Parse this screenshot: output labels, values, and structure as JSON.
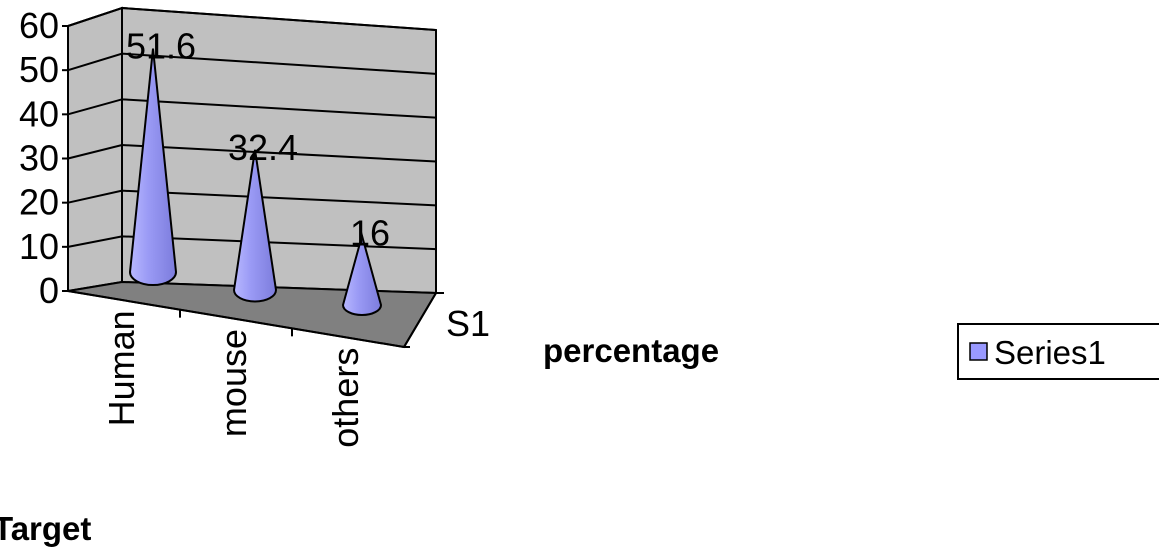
{
  "chart_data": {
    "type": "bar",
    "style": "3d-cone",
    "categories": [
      "Human",
      "mouse",
      "others"
    ],
    "series": [
      {
        "name": "Series1",
        "values": [
          51.6,
          32.4,
          16
        ],
        "color": "#9999ff"
      }
    ],
    "data_labels": [
      "51.6",
      "32.4",
      "16"
    ],
    "depth_axis_label": "S1",
    "xlabel": "Target",
    "ylabel": "percentage",
    "ylim": [
      0,
      60
    ],
    "yticks": [
      "0",
      "10",
      "20",
      "30",
      "40",
      "50",
      "60"
    ],
    "grid": true,
    "wall_color": "#c0c0c0",
    "floor_color": "#808080",
    "legend": {
      "position": "right",
      "entries": [
        "Series1"
      ]
    }
  }
}
